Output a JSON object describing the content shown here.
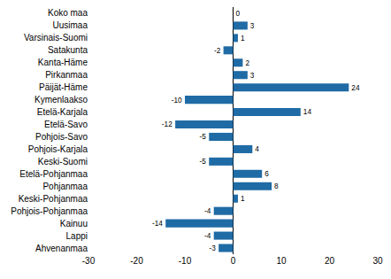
{
  "chart_data": {
    "type": "bar",
    "orientation": "horizontal",
    "categories": [
      "Koko maa",
      "Uusimaa",
      "Varsinais-Suomi",
      "Satakunta",
      "Kanta-Häme",
      "Pirkanmaa",
      "Päijät-Häme",
      "Kymenlaakso",
      "Etelä-Karjala",
      "Etelä-Savo",
      "Pohjois-Savo",
      "Pohjois-Karjala",
      "Keski-Suomi",
      "Etelä-Pohjanmaa",
      "Pohjanmaa",
      "Keski-Pohjanmaa",
      "Pohjois-Pohjanmaa",
      "Kainuu",
      "Lappi",
      "Ahvenanmaa"
    ],
    "values": [
      0,
      3,
      1,
      -2,
      2,
      3,
      24,
      -10,
      14,
      -12,
      -5,
      4,
      -5,
      6,
      8,
      1,
      -4,
      -14,
      -4,
      -3
    ],
    "color": "#1f6ba5",
    "xlim": [
      -30,
      30
    ],
    "xticks": [
      -30,
      -20,
      -10,
      0,
      10,
      20,
      30
    ],
    "grid": false,
    "data_labels": true
  }
}
